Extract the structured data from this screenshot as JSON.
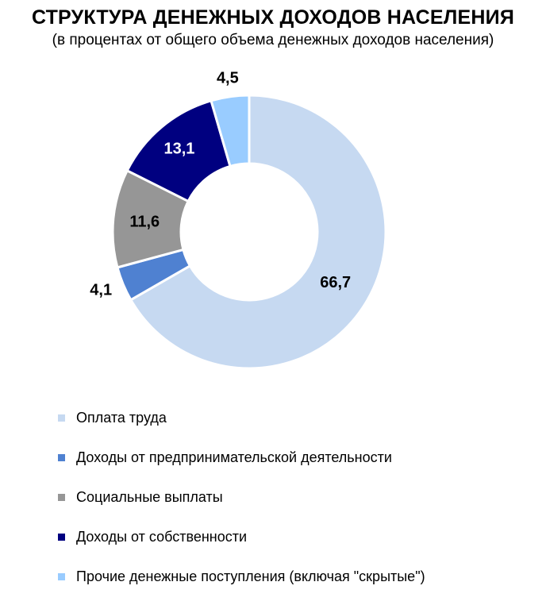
{
  "chart_data": {
    "type": "pie",
    "title": "СТРУКТУРА ДЕНЕЖНЫХ ДОХОДОВ НАСЕЛЕНИЯ",
    "subtitle": "(в процентах от общего объема денежных доходов населения)",
    "legend_placement": "bottom",
    "slices": [
      {
        "label": "Оплата труда",
        "value": 66.7,
        "value_label": "66,7",
        "color": "#c6d9f1",
        "label_color": "#000000"
      },
      {
        "label": "Доходы от предпринимательской деятельности",
        "value": 4.1,
        "value_label": "4,1",
        "color": "#4f81d1",
        "label_color": "#000000"
      },
      {
        "label": "Социальные выплаты",
        "value": 11.6,
        "value_label": "11,6",
        "color": "#969696",
        "label_color": "#000000"
      },
      {
        "label": "Доходы от собственности",
        "value": 13.1,
        "value_label": "13,1",
        "color": "#000080",
        "label_color": "#ffffff"
      },
      {
        "label": "Прочие денежные поступления (включая \"скрытые\")",
        "value": 4.5,
        "value_label": "4,5",
        "color": "#99ccff",
        "label_color": "#000000"
      }
    ]
  }
}
